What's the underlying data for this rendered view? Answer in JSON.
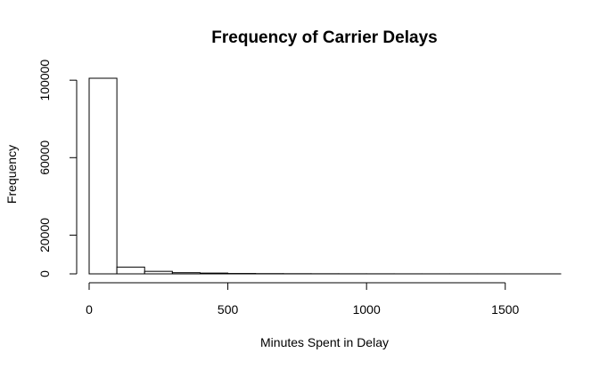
{
  "chart_data": {
    "type": "bar",
    "title": "Frequency of Carrier Delays",
    "xlabel": "Minutes Spent in Delay",
    "ylabel": "Frequency",
    "bin_edges": [
      0,
      100,
      200,
      300,
      400,
      500,
      600,
      700,
      800,
      900,
      1000,
      1100,
      1200,
      1300,
      1400,
      1500,
      1600,
      1700
    ],
    "values": [
      101000,
      3500,
      1300,
      600,
      400,
      200,
      120,
      80,
      60,
      40,
      30,
      20,
      15,
      10,
      8,
      5,
      3
    ],
    "xlim": [
      0,
      1700
    ],
    "ylim": [
      0,
      101000
    ],
    "x_ticks": [
      0,
      500,
      1000,
      1500
    ],
    "y_ticks": [
      0,
      20000,
      60000,
      100000
    ],
    "grid": false,
    "legend": "none",
    "bar_fill": "#ffffff",
    "bar_stroke": "#000000"
  }
}
